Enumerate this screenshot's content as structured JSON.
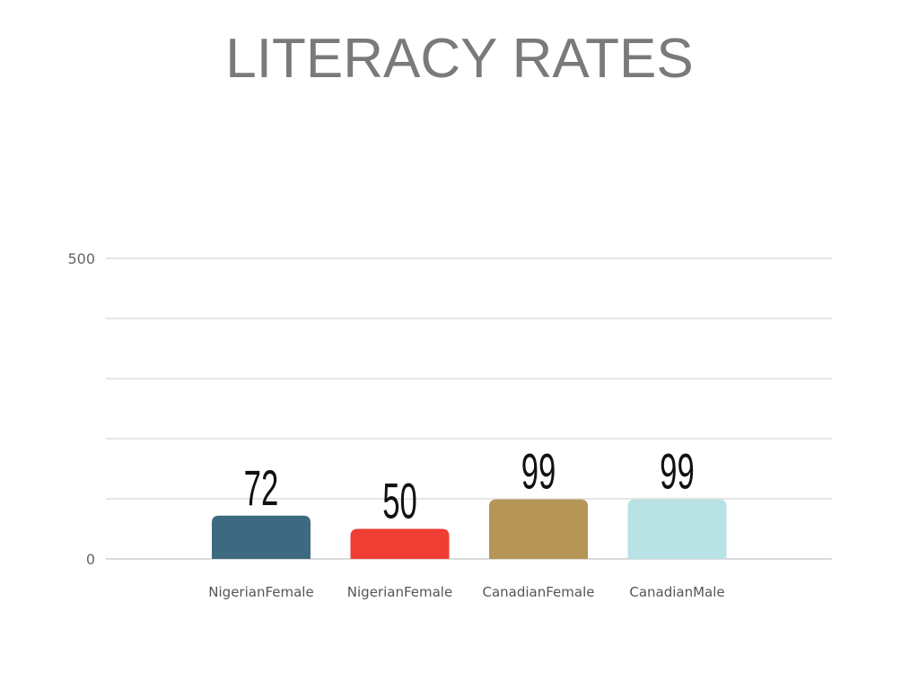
{
  "chart_data": {
    "type": "bar",
    "title": "LITERACY RATES",
    "categories": [
      "NigerianFemale",
      "NigerianFemale",
      "CanadianFemale",
      "CanadianMale"
    ],
    "values": [
      72,
      50,
      99,
      99
    ],
    "data_labels": [
      "72",
      "50",
      "99",
      "99"
    ],
    "colors": [
      "#3d6a80",
      "#ef3e33",
      "#b59657",
      "#b8e2e4"
    ],
    "ylim": [
      0,
      500
    ],
    "yticks": [
      0,
      500
    ],
    "ytick_labels": [
      "0",
      "500"
    ],
    "gridlines": [
      0,
      100,
      200,
      300,
      400,
      500
    ],
    "grid": true,
    "xlabel": "",
    "ylabel": ""
  }
}
